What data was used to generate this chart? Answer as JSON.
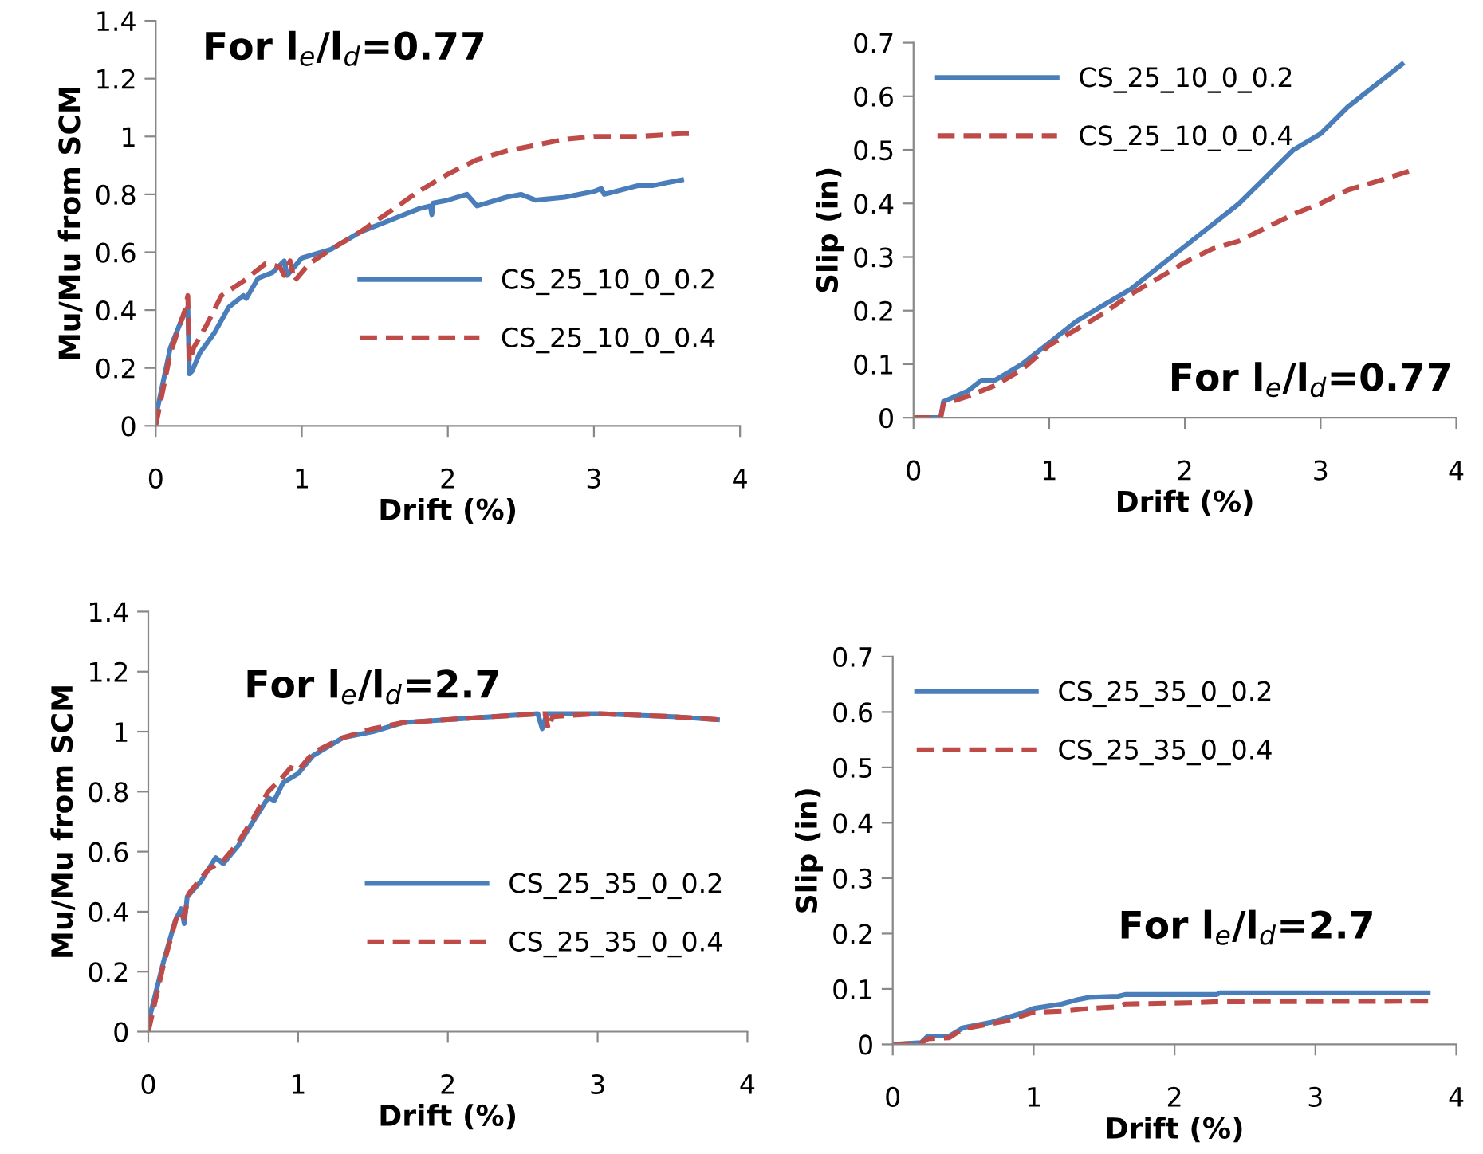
{
  "chart_data": [
    {
      "type": "line",
      "title": "For l$_{e}$/l$_{d}$=0.77",
      "xlabel": "Drift (%)",
      "ylabel": "Mu/Mu from SCM",
      "xlim": [
        0,
        4
      ],
      "xticks": [
        0,
        1,
        2,
        3,
        4
      ],
      "ylim": [
        0,
        1.4
      ],
      "yticks": [
        0,
        {
          "value": 0.2,
          "label": "0.2"
        },
        {
          "value": 0.4,
          "label": "0.4"
        },
        {
          "value": 0.6,
          "label": "0.6"
        },
        {
          "value": 0.8,
          "label": "0.8"
        },
        1,
        {
          "value": 1.2,
          "label": "1.2"
        },
        {
          "value": 1.4,
          "label": "1.4"
        }
      ],
      "legend": "bottom right",
      "grid": false,
      "series": [
        {
          "name": "CS_25_10_0_0.2",
          "color": "#4a7ebb",
          "line_style": "solid",
          "x": [
            0,
            0.1,
            0.18,
            0.22,
            0.23,
            0.25,
            0.3,
            0.4,
            0.5,
            0.6,
            0.62,
            0.7,
            0.8,
            0.88,
            0.9,
            1.0,
            1.2,
            1.4,
            1.6,
            1.8,
            1.88,
            1.89,
            1.9,
            2.0,
            2.13,
            2.2,
            2.4,
            2.5,
            2.6,
            2.8,
            3.0,
            3.05,
            3.07,
            3.3,
            3.4,
            3.5,
            3.6
          ],
          "values": [
            0.03,
            0.27,
            0.37,
            0.41,
            0.18,
            0.19,
            0.25,
            0.32,
            0.41,
            0.45,
            0.44,
            0.51,
            0.53,
            0.57,
            0.52,
            0.58,
            0.61,
            0.67,
            0.71,
            0.75,
            0.76,
            0.73,
            0.77,
            0.78,
            0.8,
            0.76,
            0.79,
            0.8,
            0.78,
            0.79,
            0.81,
            0.82,
            0.8,
            0.83,
            0.83,
            0.84,
            0.85
          ]
        },
        {
          "name": "CS_25_10_0_0.4",
          "color": "#be4b48",
          "line_style": "dashed",
          "x": [
            0,
            0.1,
            0.2,
            0.22,
            0.23,
            0.26,
            0.35,
            0.45,
            0.6,
            0.75,
            0.85,
            0.88,
            0.92,
            0.95,
            1.05,
            1.2,
            1.4,
            1.6,
            1.8,
            2.0,
            2.2,
            2.4,
            2.6,
            2.8,
            3.0,
            3.3,
            3.6,
            3.65
          ],
          "values": [
            0,
            0.25,
            0.4,
            0.45,
            0.22,
            0.27,
            0.35,
            0.45,
            0.5,
            0.56,
            0.55,
            0.52,
            0.57,
            0.5,
            0.56,
            0.61,
            0.67,
            0.74,
            0.81,
            0.87,
            0.92,
            0.95,
            0.97,
            0.99,
            1.0,
            1.0,
            1.01,
            1.01
          ]
        }
      ]
    },
    {
      "type": "line",
      "title": "For l$_{e}$/l$_{d}$=0.77",
      "xlabel": "Drift (%)",
      "ylabel": "Slip (in)",
      "xlim": [
        0,
        4
      ],
      "xticks": [
        0,
        1,
        2,
        3,
        4
      ],
      "ylim": [
        0,
        0.7
      ],
      "yticks": [
        0,
        {
          "value": 0.1,
          "label": "0.1"
        },
        {
          "value": 0.2,
          "label": "0.2"
        },
        {
          "value": 0.3,
          "label": "0.3"
        },
        {
          "value": 0.4,
          "label": "0.4"
        },
        {
          "value": 0.5,
          "label": "0.5"
        },
        {
          "value": 0.6,
          "label": "0.6"
        },
        {
          "value": 0.7,
          "label": "0.7"
        }
      ],
      "legend": "top left",
      "grid": false,
      "series": [
        {
          "name": "CS_25_10_0_0.2",
          "color": "#4a7ebb",
          "line_style": "solid",
          "x": [
            0,
            0.2,
            0.22,
            0.4,
            0.5,
            0.6,
            0.7,
            0.8,
            0.9,
            1.0,
            1.2,
            1.4,
            1.6,
            1.8,
            2.0,
            2.2,
            2.4,
            2.6,
            2.8,
            3.0,
            3.2,
            3.4,
            3.6
          ],
          "values": [
            0,
            0,
            0.03,
            0.05,
            0.07,
            0.07,
            0.085,
            0.1,
            0.12,
            0.14,
            0.18,
            0.21,
            0.24,
            0.28,
            0.32,
            0.36,
            0.4,
            0.45,
            0.5,
            0.53,
            0.58,
            0.62,
            0.66
          ]
        },
        {
          "name": "CS_25_10_0_0.4",
          "color": "#be4b48",
          "line_style": "dashed",
          "x": [
            0,
            0.2,
            0.22,
            0.4,
            0.6,
            0.8,
            1.0,
            1.2,
            1.4,
            1.6,
            1.8,
            2.0,
            2.2,
            2.4,
            2.6,
            2.8,
            3.0,
            3.2,
            3.4,
            3.65
          ],
          "values": [
            0,
            0,
            0.025,
            0.04,
            0.06,
            0.09,
            0.135,
            0.165,
            0.195,
            0.23,
            0.26,
            0.29,
            0.315,
            0.33,
            0.355,
            0.38,
            0.4,
            0.425,
            0.44,
            0.46
          ]
        }
      ]
    },
    {
      "type": "line",
      "title": "For l$_{e}$/l$_{d}$=2.7",
      "xlabel": "Drift (%)",
      "ylabel": "Mu/Mu from SCM",
      "xlim": [
        0,
        4
      ],
      "xticks": [
        0,
        1,
        2,
        3,
        4
      ],
      "ylim": [
        0,
        1.4
      ],
      "yticks": [
        0,
        {
          "value": 0.2,
          "label": "0.2"
        },
        {
          "value": 0.4,
          "label": "0.4"
        },
        {
          "value": 0.6,
          "label": "0.6"
        },
        {
          "value": 0.8,
          "label": "0.8"
        },
        1,
        {
          "value": 1.2,
          "label": "1.2"
        },
        {
          "value": 1.4,
          "label": "1.4"
        }
      ],
      "legend": "bottom right",
      "grid": false,
      "series": [
        {
          "name": "CS_25_35_0_0.2",
          "color": "#4a7ebb",
          "line_style": "solid",
          "x": [
            0,
            0.1,
            0.18,
            0.22,
            0.24,
            0.26,
            0.35,
            0.45,
            0.5,
            0.6,
            0.7,
            0.8,
            0.84,
            0.9,
            1.0,
            1.1,
            1.3,
            1.5,
            1.7,
            2.0,
            2.3,
            2.6,
            2.63,
            2.66,
            3.0,
            3.5,
            3.8
          ],
          "values": [
            0.03,
            0.23,
            0.37,
            0.41,
            0.36,
            0.45,
            0.5,
            0.58,
            0.56,
            0.62,
            0.7,
            0.78,
            0.77,
            0.83,
            0.86,
            0.92,
            0.98,
            1.0,
            1.03,
            1.04,
            1.05,
            1.06,
            1.01,
            1.06,
            1.06,
            1.05,
            1.04
          ]
        },
        {
          "name": "CS_25_35_0_0.4",
          "color": "#be4b48",
          "line_style": "dashed",
          "x": [
            0,
            0.1,
            0.2,
            0.24,
            0.27,
            0.4,
            0.5,
            0.6,
            0.7,
            0.8,
            0.9,
            0.95,
            1.0,
            1.1,
            1.3,
            1.5,
            1.7,
            2.0,
            2.3,
            2.65,
            2.67,
            2.7,
            3.0,
            3.5,
            3.8
          ],
          "values": [
            0,
            0.22,
            0.4,
            0.38,
            0.46,
            0.54,
            0.57,
            0.63,
            0.71,
            0.8,
            0.85,
            0.88,
            0.87,
            0.93,
            0.98,
            1.01,
            1.03,
            1.04,
            1.05,
            1.06,
            1.01,
            1.05,
            1.06,
            1.05,
            1.04
          ]
        }
      ]
    },
    {
      "type": "line",
      "title": "For l$_{e}$/l$_{d}$=2.7",
      "xlabel": "Drift (%)",
      "ylabel": "Slip (in)",
      "xlim": [
        0,
        4
      ],
      "xticks": [
        0,
        1,
        2,
        3,
        4
      ],
      "ylim": [
        0,
        0.7
      ],
      "yticks": [
        0,
        {
          "value": 0.1,
          "label": "0.1"
        },
        {
          "value": 0.2,
          "label": "0.2"
        },
        {
          "value": 0.3,
          "label": "0.3"
        },
        {
          "value": 0.4,
          "label": "0.4"
        },
        {
          "value": 0.5,
          "label": "0.5"
        },
        {
          "value": 0.6,
          "label": "0.6"
        },
        {
          "value": 0.7,
          "label": "0.7"
        }
      ],
      "legend": "top left",
      "grid": false,
      "series": [
        {
          "name": "CS_25_35_0_0.2",
          "color": "#4a7ebb",
          "line_style": "solid",
          "x": [
            0,
            0.2,
            0.25,
            0.4,
            0.5,
            0.7,
            0.9,
            1.0,
            1.2,
            1.3,
            1.4,
            1.6,
            1.65,
            2.3,
            2.32,
            3.8
          ],
          "values": [
            0,
            0.003,
            0.015,
            0.015,
            0.03,
            0.04,
            0.055,
            0.065,
            0.073,
            0.08,
            0.085,
            0.087,
            0.09,
            0.09,
            0.093,
            0.093
          ]
        },
        {
          "name": "CS_25_35_0_0.4",
          "color": "#be4b48",
          "line_style": "dashed",
          "x": [
            0,
            0.2,
            0.25,
            0.4,
            0.5,
            0.8,
            0.9,
            1.0,
            1.2,
            1.4,
            1.6,
            1.65,
            2.1,
            2.3,
            3.8
          ],
          "values": [
            0,
            0.002,
            0.01,
            0.012,
            0.028,
            0.042,
            0.05,
            0.058,
            0.06,
            0.065,
            0.068,
            0.073,
            0.075,
            0.077,
            0.078
          ]
        }
      ]
    }
  ]
}
